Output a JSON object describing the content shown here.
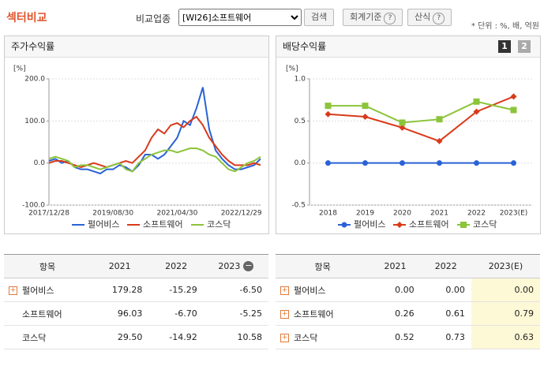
{
  "header": {
    "title": "섹터비교",
    "compare_label": "비교업종",
    "select_value": "[WI26]소프트웨어",
    "search_button": "검색",
    "accounting_button": "회계기준",
    "formula_button": "산식",
    "unit_note": "* 단위 : %, 배, 억원"
  },
  "panels": [
    {
      "title": "주가수익률"
    },
    {
      "title": "배당수익률",
      "tabs": [
        "1",
        "2"
      ]
    }
  ],
  "chart_data": [
    {
      "type": "line",
      "unit": "[%]",
      "categories": [
        "2017/12/28",
        null,
        null,
        null,
        null,
        null,
        null,
        null,
        null,
        null,
        "2019/08/30",
        null,
        null,
        null,
        null,
        null,
        null,
        null,
        null,
        null,
        "2021/04/30",
        null,
        null,
        null,
        null,
        null,
        null,
        null,
        null,
        null,
        "2022/12/29",
        null,
        null,
        null
      ],
      "ylim": [
        -100,
        200
      ],
      "yticks": [
        {
          "value": -100,
          "label": "-100.0"
        },
        {
          "value": 0,
          "label": "0.0"
        },
        {
          "value": 100,
          "label": "100.0"
        },
        {
          "value": 200,
          "label": "200.0"
        }
      ],
      "grid": true,
      "markers": false,
      "series": [
        {
          "name": "펄어비스",
          "color": "#2a62d6",
          "values": [
            5,
            10,
            0,
            5,
            -10,
            -15,
            -15,
            -20,
            -25,
            -15,
            -15,
            -5,
            -10,
            -20,
            -5,
            20,
            20,
            10,
            20,
            40,
            60,
            100,
            90,
            130,
            180,
            80,
            30,
            10,
            -5,
            -15,
            -15,
            -10,
            -5,
            10
          ]
        },
        {
          "name": "소프트웨어",
          "color": "#d93a1a",
          "values": [
            0,
            5,
            5,
            0,
            -5,
            -10,
            -5,
            0,
            -5,
            -10,
            -5,
            0,
            5,
            0,
            15,
            30,
            60,
            80,
            70,
            90,
            95,
            85,
            100,
            110,
            90,
            60,
            40,
            20,
            5,
            -5,
            -5,
            -5,
            0,
            -5
          ]
        },
        {
          "name": "코스닥",
          "color": "#8cc43a",
          "values": [
            10,
            15,
            10,
            5,
            -10,
            -5,
            -5,
            -10,
            -15,
            -10,
            -5,
            0,
            -15,
            -20,
            0,
            10,
            20,
            25,
            30,
            30,
            25,
            30,
            35,
            35,
            30,
            20,
            15,
            0,
            -15,
            -20,
            -10,
            0,
            5,
            15
          ]
        }
      ]
    },
    {
      "type": "line",
      "unit": "[%]",
      "categories": [
        "2018",
        "2019",
        "2020",
        "2021",
        "2022",
        "2023(E)"
      ],
      "ylim": [
        -0.5,
        1.0
      ],
      "yticks": [
        -0.5,
        {
          "value": 0,
          "label": "0.0"
        },
        0.5,
        {
          "value": 1.0,
          "label": "1.0"
        }
      ],
      "grid": true,
      "markers": true,
      "series": [
        {
          "name": "펄어비스",
          "color": "#2a62d6",
          "values": [
            0,
            0,
            0,
            0,
            0,
            0
          ]
        },
        {
          "name": "소프트웨어",
          "color": "#d93a1a",
          "values": [
            0.58,
            0.55,
            0.42,
            0.26,
            0.61,
            0.79
          ]
        },
        {
          "name": "코스닥",
          "color": "#8cc43a",
          "values": [
            0.68,
            0.68,
            0.48,
            0.52,
            0.73,
            0.63
          ]
        }
      ]
    }
  ],
  "tables": [
    {
      "header": [
        "항목",
        "2021",
        "2022",
        "2023"
      ],
      "rows": [
        [
          "펄어비스",
          "179.28",
          "-15.29",
          "-6.50"
        ],
        [
          "소프트웨어",
          "96.03",
          "-6.70",
          "-5.25"
        ],
        [
          "코스닥",
          "29.50",
          "-14.92",
          "10.58"
        ]
      ]
    },
    {
      "header": [
        "항목",
        "2021",
        "2022",
        "2023(E)"
      ],
      "rows": [
        [
          "펄어비스",
          "0.00",
          "0.00",
          "0.00"
        ],
        [
          "소프트웨어",
          "0.26",
          "0.61",
          "0.79"
        ],
        [
          "코스닥",
          "0.52",
          "0.73",
          "0.63"
        ]
      ]
    }
  ]
}
